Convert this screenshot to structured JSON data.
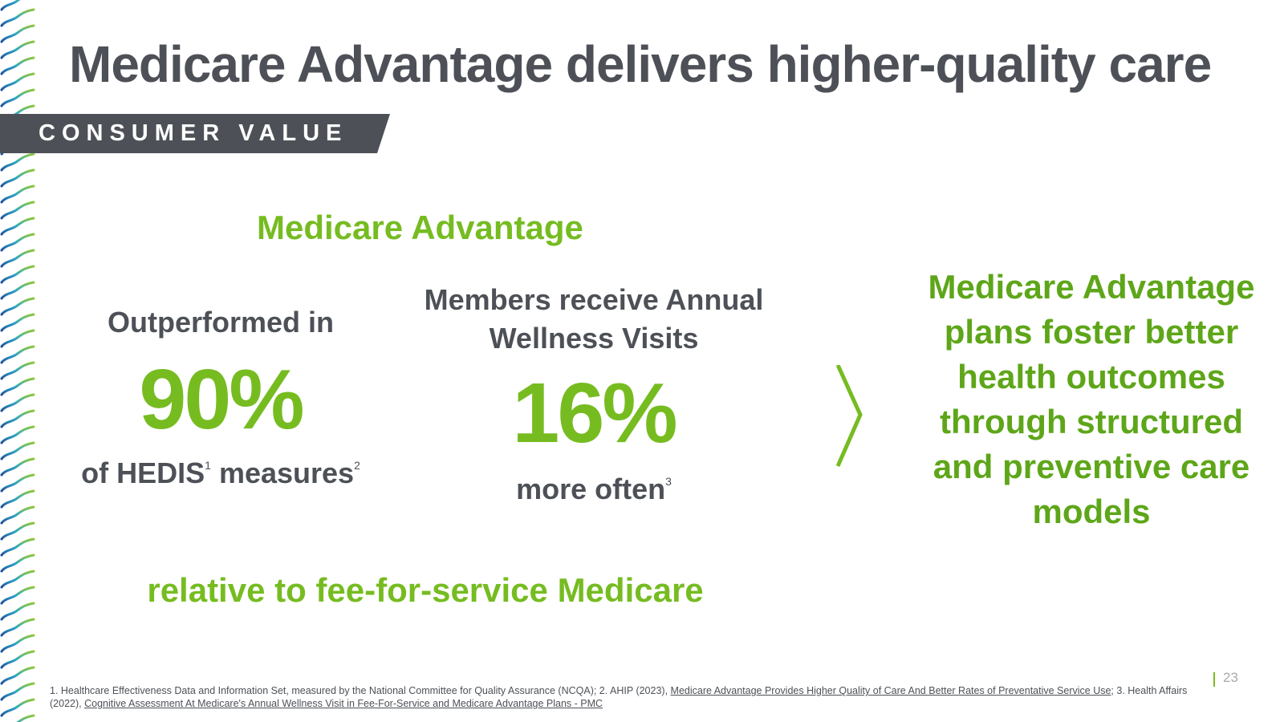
{
  "slide": {
    "title": "Medicare Advantage delivers higher-quality care",
    "banner": "CONSUMER VALUE",
    "page_number": "23"
  },
  "stats": {
    "section_label": "Medicare Advantage",
    "stat1": {
      "top": "Outperformed in",
      "value": "90%",
      "bottom_a": "of HEDIS",
      "sup_a": "1",
      "bottom_b": " measures",
      "sup_b": "2"
    },
    "stat2": {
      "top": "Members receive Annual Wellness Visits",
      "value": "16%",
      "bottom": "more often",
      "sup": "3"
    },
    "comparison": "relative to fee-for-service Medicare"
  },
  "conclusion": "Medicare Advantage plans foster better health outcomes through structured and preventive care models",
  "footnote": {
    "part1": "1. Healthcare Effectiveness Data and Information Set, measured by the National Committee for Quality Assurance (NCQA); 2. AHIP (2023), ",
    "link1": "Medicare Advantage Provides Higher Quality of Care And Better Rates of Preventative Service Use",
    "part2": "; 3. Health Affairs (2022), ",
    "link2": "Cognitive Assessment At Medicare's Annual Wellness Visit in Fee-For-Service and Medicare Advantage Plans - PMC"
  },
  "colors": {
    "accent_green": "#76bc21",
    "dark_text": "#4d5157",
    "banner_bg": "#4d5157",
    "wave_gradient": [
      "#8cc63f",
      "#2fa8c6",
      "#1e4f9c"
    ]
  },
  "icons": [
    "wave-pattern",
    "chevron-right-icon"
  ]
}
